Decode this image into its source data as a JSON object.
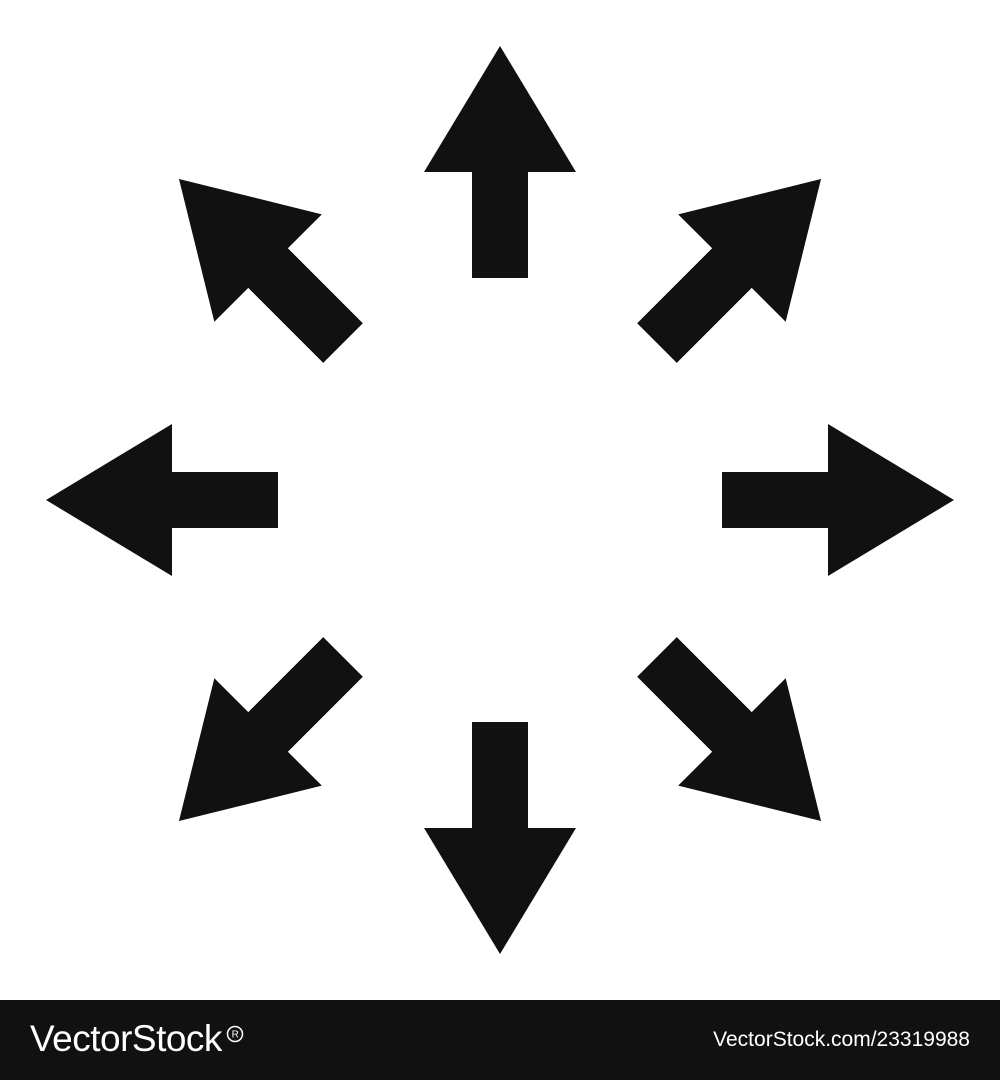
{
  "icon": {
    "name": "expand-arrows-icon",
    "arrow_color": "#111111",
    "background_color": "#ffffff",
    "arrow_directions": [
      "up",
      "up-right",
      "right",
      "down-right",
      "down",
      "down-left",
      "left",
      "up-left"
    ]
  },
  "footer": {
    "background_color": "#111111",
    "text_color": "#ffffff",
    "brand": "VectorStock",
    "brand_mark": "®",
    "attribution": "VectorStock.com/23319988"
  }
}
